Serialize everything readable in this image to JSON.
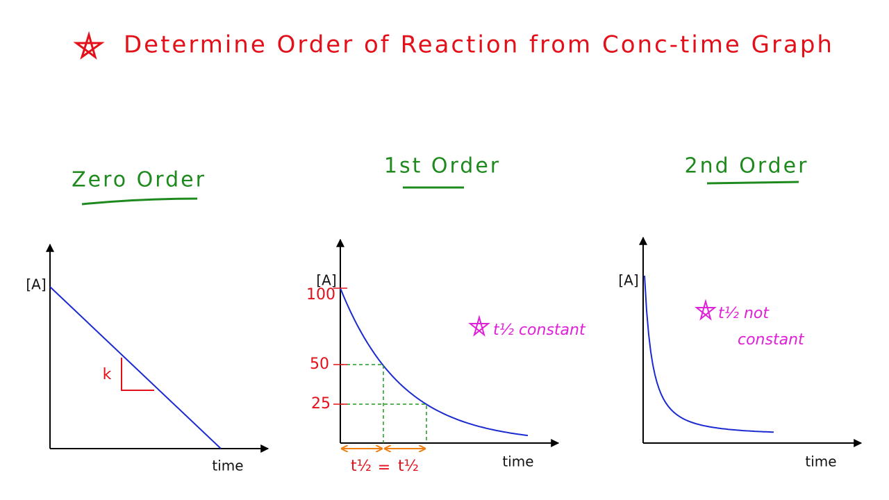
{
  "title": "Determine Order of Reaction from Conc-time Graph",
  "panels": [
    {
      "heading": "Zero Order",
      "y_label": "[A]",
      "x_label": "time",
      "slope_label": "k"
    },
    {
      "heading": "1st Order",
      "y_label": "[A]",
      "x_label": "time",
      "tick_labels": [
        "100",
        "50",
        "25"
      ],
      "half_life_labels": [
        "t½",
        "=",
        "t½"
      ],
      "note": "t½ constant"
    },
    {
      "heading": "2nd Order",
      "y_label": "[A]",
      "x_label": "time",
      "note_lines": [
        "t½ not",
        "constant"
      ]
    }
  ]
}
